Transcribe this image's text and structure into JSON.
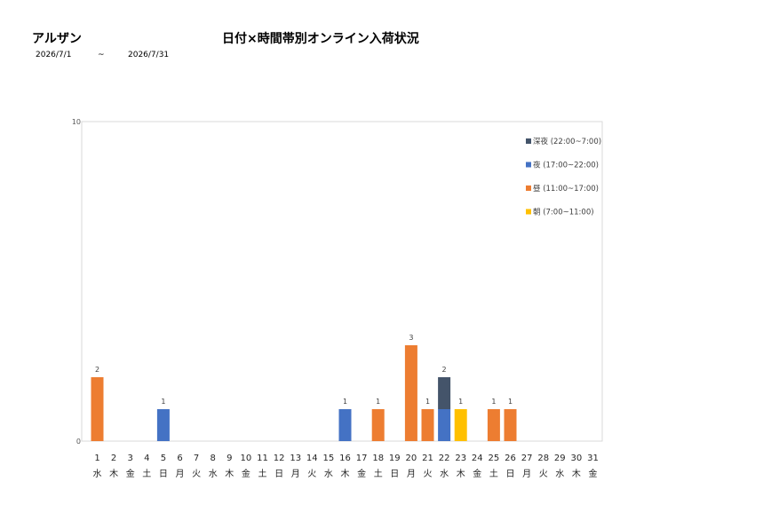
{
  "header": {
    "store_name": "アルザン",
    "title": "日付×時間帯別オンライン入荷状況",
    "date_from": "2026/7/1",
    "date_sep": "~",
    "date_to": "2026/7/31"
  },
  "chart_data": {
    "type": "bar",
    "stacked": true,
    "ylim": [
      0,
      10
    ],
    "y_ticks": [
      0,
      10
    ],
    "grid": false,
    "legend_position": "top-right",
    "categories": [
      "1",
      "2",
      "3",
      "4",
      "5",
      "6",
      "7",
      "8",
      "9",
      "10",
      "11",
      "12",
      "13",
      "14",
      "15",
      "16",
      "17",
      "18",
      "19",
      "20",
      "21",
      "22",
      "23",
      "24",
      "25",
      "26",
      "27",
      "28",
      "29",
      "30",
      "31"
    ],
    "weekdays": [
      "水",
      "木",
      "金",
      "土",
      "日",
      "月",
      "火",
      "水",
      "木",
      "金",
      "土",
      "日",
      "月",
      "火",
      "水",
      "木",
      "金",
      "土",
      "日",
      "月",
      "火",
      "水",
      "木",
      "金",
      "土",
      "日",
      "月",
      "火",
      "水",
      "木",
      "金"
    ],
    "series": [
      {
        "name": "朝 (7:00~11:00)",
        "color": "#ffc000",
        "values": [
          0,
          0,
          0,
          0,
          0,
          0,
          0,
          0,
          0,
          0,
          0,
          0,
          0,
          0,
          0,
          0,
          0,
          0,
          0,
          0,
          0,
          0,
          1,
          0,
          0,
          0,
          0,
          0,
          0,
          0,
          0
        ]
      },
      {
        "name": "昼 (11:00~17:00)",
        "color": "#ed7d31",
        "values": [
          2,
          0,
          0,
          0,
          0,
          0,
          0,
          0,
          0,
          0,
          0,
          0,
          0,
          0,
          0,
          0,
          0,
          1,
          0,
          3,
          1,
          0,
          0,
          0,
          1,
          1,
          0,
          0,
          0,
          0,
          0
        ]
      },
      {
        "name": "夜 (17:00~22:00)",
        "color": "#4472c4",
        "values": [
          0,
          0,
          0,
          0,
          1,
          0,
          0,
          0,
          0,
          0,
          0,
          0,
          0,
          0,
          0,
          1,
          0,
          0,
          0,
          0,
          0,
          1,
          0,
          0,
          0,
          0,
          0,
          0,
          0,
          0,
          0
        ]
      },
      {
        "name": "深夜 (22:00~7:00)",
        "color": "#44546a",
        "values": [
          0,
          0,
          0,
          0,
          0,
          0,
          0,
          0,
          0,
          0,
          0,
          0,
          0,
          0,
          0,
          0,
          0,
          0,
          0,
          0,
          0,
          1,
          0,
          0,
          0,
          0,
          0,
          0,
          0,
          0,
          0
        ]
      }
    ],
    "totals": [
      2,
      0,
      0,
      0,
      1,
      0,
      0,
      0,
      0,
      0,
      0,
      0,
      0,
      0,
      0,
      1,
      0,
      1,
      0,
      3,
      1,
      2,
      1,
      0,
      1,
      1,
      0,
      0,
      0,
      0,
      0
    ],
    "legend_order": [
      3,
      2,
      1,
      0
    ]
  }
}
